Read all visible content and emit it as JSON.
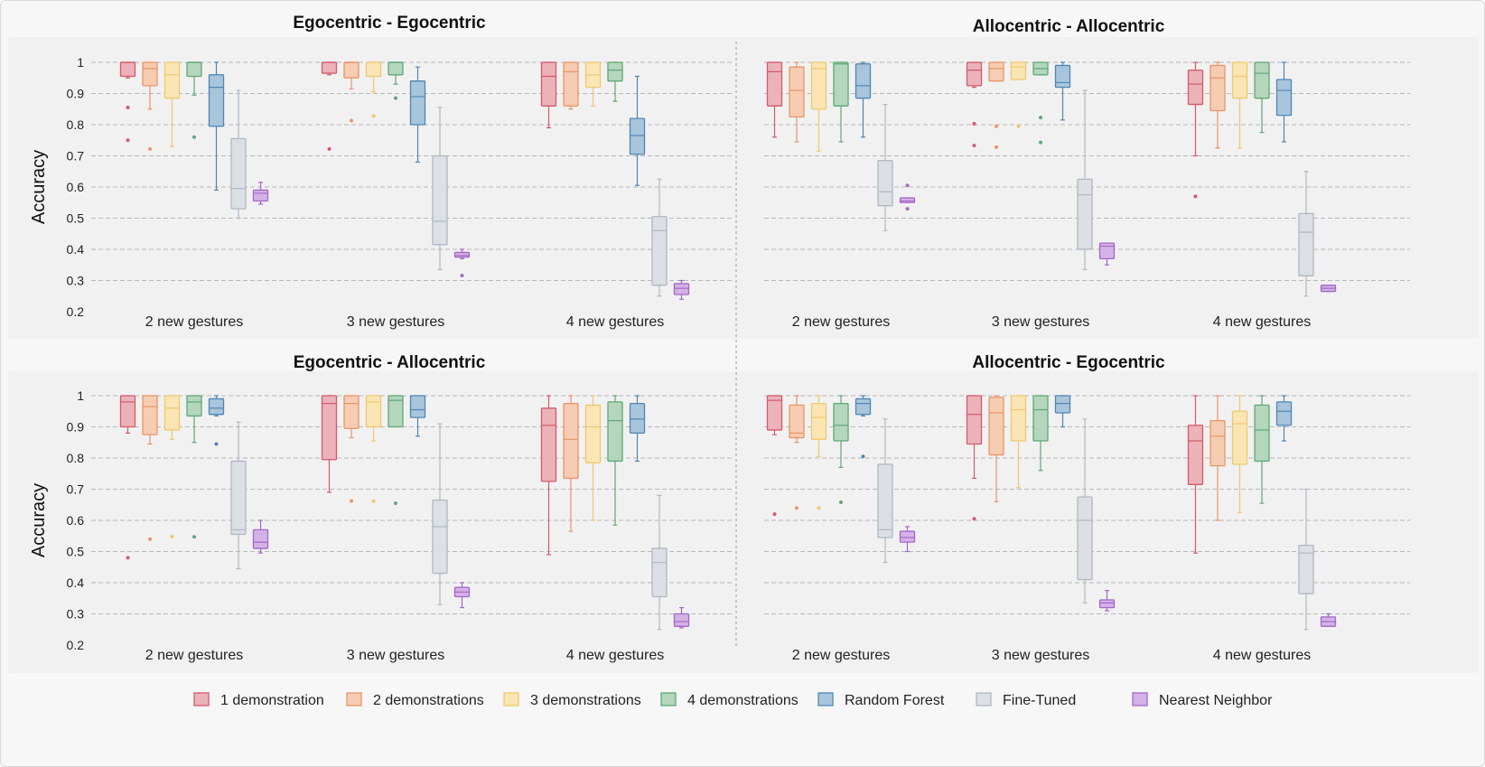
{
  "chart_data": {
    "type": "box",
    "ylabel": "Accuracy",
    "ylim": [
      0.2,
      1.0
    ],
    "yticks": [
      0.2,
      0.3,
      0.4,
      0.5,
      0.6,
      0.7,
      0.8,
      0.9,
      1
    ],
    "ytick_labels": [
      "0.2",
      "0.3",
      "0.4",
      "0.5",
      "0.6",
      "0.7",
      "0.8",
      "0.9",
      "1"
    ],
    "categories": [
      "2 new gestures",
      "3 new gestures",
      "4 new gestures"
    ],
    "series": [
      {
        "name": "1 demonstration",
        "color": "#d45a6a",
        "fill": "#ebb2ba"
      },
      {
        "name": "2 demonstrations",
        "color": "#e8956a",
        "fill": "#f6ccb2"
      },
      {
        "name": "3 demonstrations",
        "color": "#f0c870",
        "fill": "#fae5b4"
      },
      {
        "name": "4 demonstrations",
        "color": "#5fa876",
        "fill": "#b3d6bc"
      },
      {
        "name": "Random Forest",
        "color": "#4f86b4",
        "fill": "#a8c5dc"
      },
      {
        "name": "Fine-Tuned",
        "color": "#b0b8c4",
        "fill": "#dcdfe4"
      },
      {
        "name": "Nearest Neighbor",
        "color": "#a468c8",
        "fill": "#d4b2e6"
      }
    ],
    "panels": [
      {
        "title": "Egocentric - Egocentric",
        "groups": [
          [
            {
              "whislo": 0.95,
              "q1": 0.955,
              "med": 1.0,
              "q3": 1.0,
              "whishi": 1.0,
              "fliers": [
                0.855,
                0.75
              ]
            },
            {
              "whislo": 0.85,
              "q1": 0.925,
              "med": 0.98,
              "q3": 1.0,
              "whishi": 1.0,
              "fliers": [
                0.722
              ]
            },
            {
              "whislo": 0.73,
              "q1": 0.885,
              "med": 0.96,
              "q3": 1.0,
              "whishi": 1.0,
              "fliers": []
            },
            {
              "whislo": 0.895,
              "q1": 0.955,
              "med": 1.0,
              "q3": 1.0,
              "whishi": 1.0,
              "fliers": [
                0.76
              ]
            },
            {
              "whislo": 0.59,
              "q1": 0.795,
              "med": 0.92,
              "q3": 0.96,
              "whishi": 1.0,
              "fliers": []
            },
            {
              "whislo": 0.5,
              "q1": 0.53,
              "med": 0.595,
              "q3": 0.755,
              "whishi": 0.91,
              "fliers": []
            },
            {
              "whislo": 0.545,
              "q1": 0.555,
              "med": 0.58,
              "q3": 0.59,
              "whishi": 0.615,
              "fliers": []
            }
          ],
          [
            {
              "whislo": 0.96,
              "q1": 0.965,
              "med": 1.0,
              "q3": 1.0,
              "whishi": 1.0,
              "fliers": [
                0.722
              ]
            },
            {
              "whislo": 0.915,
              "q1": 0.95,
              "med": 1.0,
              "q3": 1.0,
              "whishi": 1.0,
              "fliers": [
                0.813
              ]
            },
            {
              "whislo": 0.905,
              "q1": 0.955,
              "med": 1.0,
              "q3": 1.0,
              "whishi": 1.0,
              "fliers": [
                0.828
              ]
            },
            {
              "whislo": 0.93,
              "q1": 0.96,
              "med": 1.0,
              "q3": 1.0,
              "whishi": 1.0,
              "fliers": [
                0.885
              ]
            },
            {
              "whislo": 0.68,
              "q1": 0.8,
              "med": 0.89,
              "q3": 0.94,
              "whishi": 0.985,
              "fliers": []
            },
            {
              "whislo": 0.335,
              "q1": 0.415,
              "med": 0.49,
              "q3": 0.7,
              "whishi": 0.855,
              "fliers": []
            },
            {
              "whislo": 0.37,
              "q1": 0.375,
              "med": 0.38,
              "q3": 0.39,
              "whishi": 0.4,
              "fliers": [
                0.316
              ]
            }
          ],
          [
            {
              "whislo": 0.79,
              "q1": 0.86,
              "med": 0.955,
              "q3": 1.0,
              "whishi": 1.0,
              "fliers": []
            },
            {
              "whislo": 0.85,
              "q1": 0.86,
              "med": 0.97,
              "q3": 1.0,
              "whishi": 1.0,
              "fliers": []
            },
            {
              "whislo": 0.86,
              "q1": 0.92,
              "med": 0.96,
              "q3": 1.0,
              "whishi": 1.0,
              "fliers": []
            },
            {
              "whislo": 0.875,
              "q1": 0.94,
              "med": 0.975,
              "q3": 1.0,
              "whishi": 1.0,
              "fliers": []
            },
            {
              "whislo": 0.605,
              "q1": 0.705,
              "med": 0.765,
              "q3": 0.82,
              "whishi": 0.955,
              "fliers": []
            },
            {
              "whislo": 0.25,
              "q1": 0.285,
              "med": 0.46,
              "q3": 0.505,
              "whishi": 0.625,
              "fliers": []
            },
            {
              "whislo": 0.24,
              "q1": 0.255,
              "med": 0.275,
              "q3": 0.29,
              "whishi": 0.3,
              "fliers": []
            }
          ]
        ]
      },
      {
        "title": "Allocentric - Allocentric",
        "groups": [
          [
            {
              "whislo": 0.76,
              "q1": 0.86,
              "med": 0.97,
              "q3": 1.0,
              "whishi": 1.0,
              "fliers": []
            },
            {
              "whislo": 0.745,
              "q1": 0.825,
              "med": 0.91,
              "q3": 0.985,
              "whishi": 1.0,
              "fliers": []
            },
            {
              "whislo": 0.715,
              "q1": 0.85,
              "med": 0.98,
              "q3": 1.0,
              "whishi": 1.0,
              "fliers": []
            },
            {
              "whislo": 0.745,
              "q1": 0.86,
              "med": 0.995,
              "q3": 1.0,
              "whishi": 1.0,
              "fliers": []
            },
            {
              "whislo": 0.76,
              "q1": 0.885,
              "med": 0.925,
              "q3": 0.995,
              "whishi": 1.0,
              "fliers": []
            },
            {
              "whislo": 0.46,
              "q1": 0.54,
              "med": 0.585,
              "q3": 0.685,
              "whishi": 0.865,
              "fliers": []
            },
            {
              "whislo": 0.55,
              "q1": 0.55,
              "med": 0.555,
              "q3": 0.565,
              "whishi": 0.565,
              "fliers": [
                0.605,
                0.53
              ]
            }
          ],
          [
            {
              "whislo": 0.92,
              "q1": 0.925,
              "med": 0.975,
              "q3": 1.0,
              "whishi": 1.0,
              "fliers": [
                0.803,
                0.733
              ]
            },
            {
              "whislo": 0.94,
              "q1": 0.94,
              "med": 0.98,
              "q3": 1.0,
              "whishi": 1.0,
              "fliers": [
                0.795,
                0.728
              ]
            },
            {
              "whislo": 0.945,
              "q1": 0.945,
              "med": 0.985,
              "q3": 1.0,
              "whishi": 1.0,
              "fliers": [
                0.795
              ]
            },
            {
              "whislo": 0.96,
              "q1": 0.96,
              "med": 0.98,
              "q3": 1.0,
              "whishi": 1.0,
              "fliers": [
                0.823,
                0.743
              ]
            },
            {
              "whislo": 0.815,
              "q1": 0.92,
              "med": 0.935,
              "q3": 0.99,
              "whishi": 1.0,
              "fliers": []
            },
            {
              "whislo": 0.335,
              "q1": 0.4,
              "med": 0.575,
              "q3": 0.625,
              "whishi": 0.91,
              "fliers": []
            },
            {
              "whislo": 0.35,
              "q1": 0.37,
              "med": 0.41,
              "q3": 0.42,
              "whishi": 0.42,
              "fliers": []
            }
          ],
          [
            {
              "whislo": 0.7,
              "q1": 0.865,
              "med": 0.93,
              "q3": 0.975,
              "whishi": 1.0,
              "fliers": [
                0.57
              ]
            },
            {
              "whislo": 0.725,
              "q1": 0.845,
              "med": 0.95,
              "q3": 0.99,
              "whishi": 1.0,
              "fliers": []
            },
            {
              "whislo": 0.725,
              "q1": 0.885,
              "med": 0.955,
              "q3": 1.0,
              "whishi": 1.0,
              "fliers": []
            },
            {
              "whislo": 0.775,
              "q1": 0.885,
              "med": 0.965,
              "q3": 1.0,
              "whishi": 1.0,
              "fliers": []
            },
            {
              "whislo": 0.745,
              "q1": 0.83,
              "med": 0.91,
              "q3": 0.945,
              "whishi": 1.0,
              "fliers": []
            },
            {
              "whislo": 0.25,
              "q1": 0.315,
              "med": 0.455,
              "q3": 0.515,
              "whishi": 0.65,
              "fliers": []
            },
            {
              "whislo": 0.265,
              "q1": 0.265,
              "med": 0.275,
              "q3": 0.285,
              "whishi": 0.285,
              "fliers": []
            }
          ]
        ]
      },
      {
        "title": "Egocentric - Allocentric",
        "groups": [
          [
            {
              "whislo": 0.88,
              "q1": 0.9,
              "med": 0.98,
              "q3": 1.0,
              "whishi": 1.0,
              "fliers": [
                0.48
              ]
            },
            {
              "whislo": 0.845,
              "q1": 0.875,
              "med": 0.965,
              "q3": 1.0,
              "whishi": 1.0,
              "fliers": [
                0.54
              ]
            },
            {
              "whislo": 0.86,
              "q1": 0.89,
              "med": 0.96,
              "q3": 1.0,
              "whishi": 1.0,
              "fliers": [
                0.548
              ]
            },
            {
              "whislo": 0.85,
              "q1": 0.935,
              "med": 0.98,
              "q3": 1.0,
              "whishi": 1.0,
              "fliers": [
                0.547
              ]
            },
            {
              "whislo": 0.935,
              "q1": 0.94,
              "med": 0.96,
              "q3": 0.99,
              "whishi": 1.0,
              "fliers": [
                0.845
              ]
            },
            {
              "whislo": 0.445,
              "q1": 0.555,
              "med": 0.57,
              "q3": 0.79,
              "whishi": 0.915,
              "fliers": []
            },
            {
              "whislo": 0.495,
              "q1": 0.51,
              "med": 0.53,
              "q3": 0.57,
              "whishi": 0.6,
              "fliers": []
            }
          ],
          [
            {
              "whislo": 0.69,
              "q1": 0.795,
              "med": 0.975,
              "q3": 1.0,
              "whishi": 1.0,
              "fliers": []
            },
            {
              "whislo": 0.865,
              "q1": 0.895,
              "med": 0.975,
              "q3": 1.0,
              "whishi": 1.0,
              "fliers": [
                0.662
              ]
            },
            {
              "whislo": 0.855,
              "q1": 0.9,
              "med": 0.98,
              "q3": 1.0,
              "whishi": 1.0,
              "fliers": [
                0.662
              ]
            },
            {
              "whislo": 0.9,
              "q1": 0.9,
              "med": 0.985,
              "q3": 1.0,
              "whishi": 1.0,
              "fliers": [
                0.655
              ]
            },
            {
              "whislo": 0.87,
              "q1": 0.93,
              "med": 0.955,
              "q3": 1.0,
              "whishi": 1.0,
              "fliers": []
            },
            {
              "whislo": 0.33,
              "q1": 0.43,
              "med": 0.58,
              "q3": 0.665,
              "whishi": 0.91,
              "fliers": []
            },
            {
              "whislo": 0.32,
              "q1": 0.355,
              "med": 0.37,
              "q3": 0.385,
              "whishi": 0.4,
              "fliers": []
            }
          ],
          [
            {
              "whislo": 0.49,
              "q1": 0.725,
              "med": 0.905,
              "q3": 0.96,
              "whishi": 1.0,
              "fliers": []
            },
            {
              "whislo": 0.565,
              "q1": 0.735,
              "med": 0.86,
              "q3": 0.975,
              "whishi": 1.0,
              "fliers": []
            },
            {
              "whislo": 0.6,
              "q1": 0.785,
              "med": 0.9,
              "q3": 0.97,
              "whishi": 1.0,
              "fliers": []
            },
            {
              "whislo": 0.585,
              "q1": 0.79,
              "med": 0.92,
              "q3": 0.98,
              "whishi": 1.0,
              "fliers": []
            },
            {
              "whislo": 0.79,
              "q1": 0.88,
              "med": 0.925,
              "q3": 0.975,
              "whishi": 1.0,
              "fliers": []
            },
            {
              "whislo": 0.25,
              "q1": 0.355,
              "med": 0.465,
              "q3": 0.51,
              "whishi": 0.68,
              "fliers": []
            },
            {
              "whislo": 0.255,
              "q1": 0.26,
              "med": 0.275,
              "q3": 0.3,
              "whishi": 0.32,
              "fliers": []
            }
          ]
        ]
      },
      {
        "title": "Allocentric - Egocentric",
        "groups": [
          [
            {
              "whislo": 0.875,
              "q1": 0.89,
              "med": 0.985,
              "q3": 1.0,
              "whishi": 1.0,
              "fliers": [
                0.62
              ]
            },
            {
              "whislo": 0.85,
              "q1": 0.865,
              "med": 0.88,
              "q3": 0.97,
              "whishi": 1.0,
              "fliers": [
                0.64
              ]
            },
            {
              "whislo": 0.805,
              "q1": 0.86,
              "med": 0.93,
              "q3": 0.975,
              "whishi": 1.0,
              "fliers": [
                0.64
              ]
            },
            {
              "whislo": 0.77,
              "q1": 0.855,
              "med": 0.905,
              "q3": 0.975,
              "whishi": 1.0,
              "fliers": [
                0.658
              ]
            },
            {
              "whislo": 0.935,
              "q1": 0.94,
              "med": 0.975,
              "q3": 0.99,
              "whishi": 1.0,
              "fliers": [
                0.805
              ]
            },
            {
              "whislo": 0.465,
              "q1": 0.545,
              "med": 0.57,
              "q3": 0.78,
              "whishi": 0.925,
              "fliers": []
            },
            {
              "whislo": 0.5,
              "q1": 0.53,
              "med": 0.545,
              "q3": 0.565,
              "whishi": 0.58,
              "fliers": []
            }
          ],
          [
            {
              "whislo": 0.735,
              "q1": 0.845,
              "med": 0.94,
              "q3": 1.0,
              "whishi": 1.0,
              "fliers": [
                0.605
              ]
            },
            {
              "whislo": 0.66,
              "q1": 0.81,
              "med": 0.945,
              "q3": 0.995,
              "whishi": 1.0,
              "fliers": []
            },
            {
              "whislo": 0.705,
              "q1": 0.855,
              "med": 0.955,
              "q3": 1.0,
              "whishi": 1.0,
              "fliers": []
            },
            {
              "whislo": 0.76,
              "q1": 0.855,
              "med": 0.955,
              "q3": 1.0,
              "whishi": 1.0,
              "fliers": []
            },
            {
              "whislo": 0.9,
              "q1": 0.945,
              "med": 0.975,
              "q3": 1.0,
              "whishi": 1.0,
              "fliers": []
            },
            {
              "whislo": 0.335,
              "q1": 0.41,
              "med": 0.6,
              "q3": 0.675,
              "whishi": 0.925,
              "fliers": []
            },
            {
              "whislo": 0.31,
              "q1": 0.32,
              "med": 0.335,
              "q3": 0.345,
              "whishi": 0.375,
              "fliers": []
            }
          ],
          [
            {
              "whislo": 0.495,
              "q1": 0.715,
              "med": 0.855,
              "q3": 0.905,
              "whishi": 1.0,
              "fliers": []
            },
            {
              "whislo": 0.6,
              "q1": 0.775,
              "med": 0.87,
              "q3": 0.92,
              "whishi": 1.0,
              "fliers": []
            },
            {
              "whislo": 0.625,
              "q1": 0.78,
              "med": 0.91,
              "q3": 0.95,
              "whishi": 1.0,
              "fliers": []
            },
            {
              "whislo": 0.655,
              "q1": 0.79,
              "med": 0.89,
              "q3": 0.97,
              "whishi": 1.0,
              "fliers": []
            },
            {
              "whislo": 0.855,
              "q1": 0.905,
              "med": 0.95,
              "q3": 0.98,
              "whishi": 1.0,
              "fliers": []
            },
            {
              "whislo": 0.25,
              "q1": 0.365,
              "med": 0.495,
              "q3": 0.52,
              "whishi": 0.7,
              "fliers": []
            },
            {
              "whislo": 0.26,
              "q1": 0.26,
              "med": 0.275,
              "q3": 0.29,
              "whishi": 0.3,
              "fliers": []
            }
          ]
        ]
      }
    ]
  }
}
